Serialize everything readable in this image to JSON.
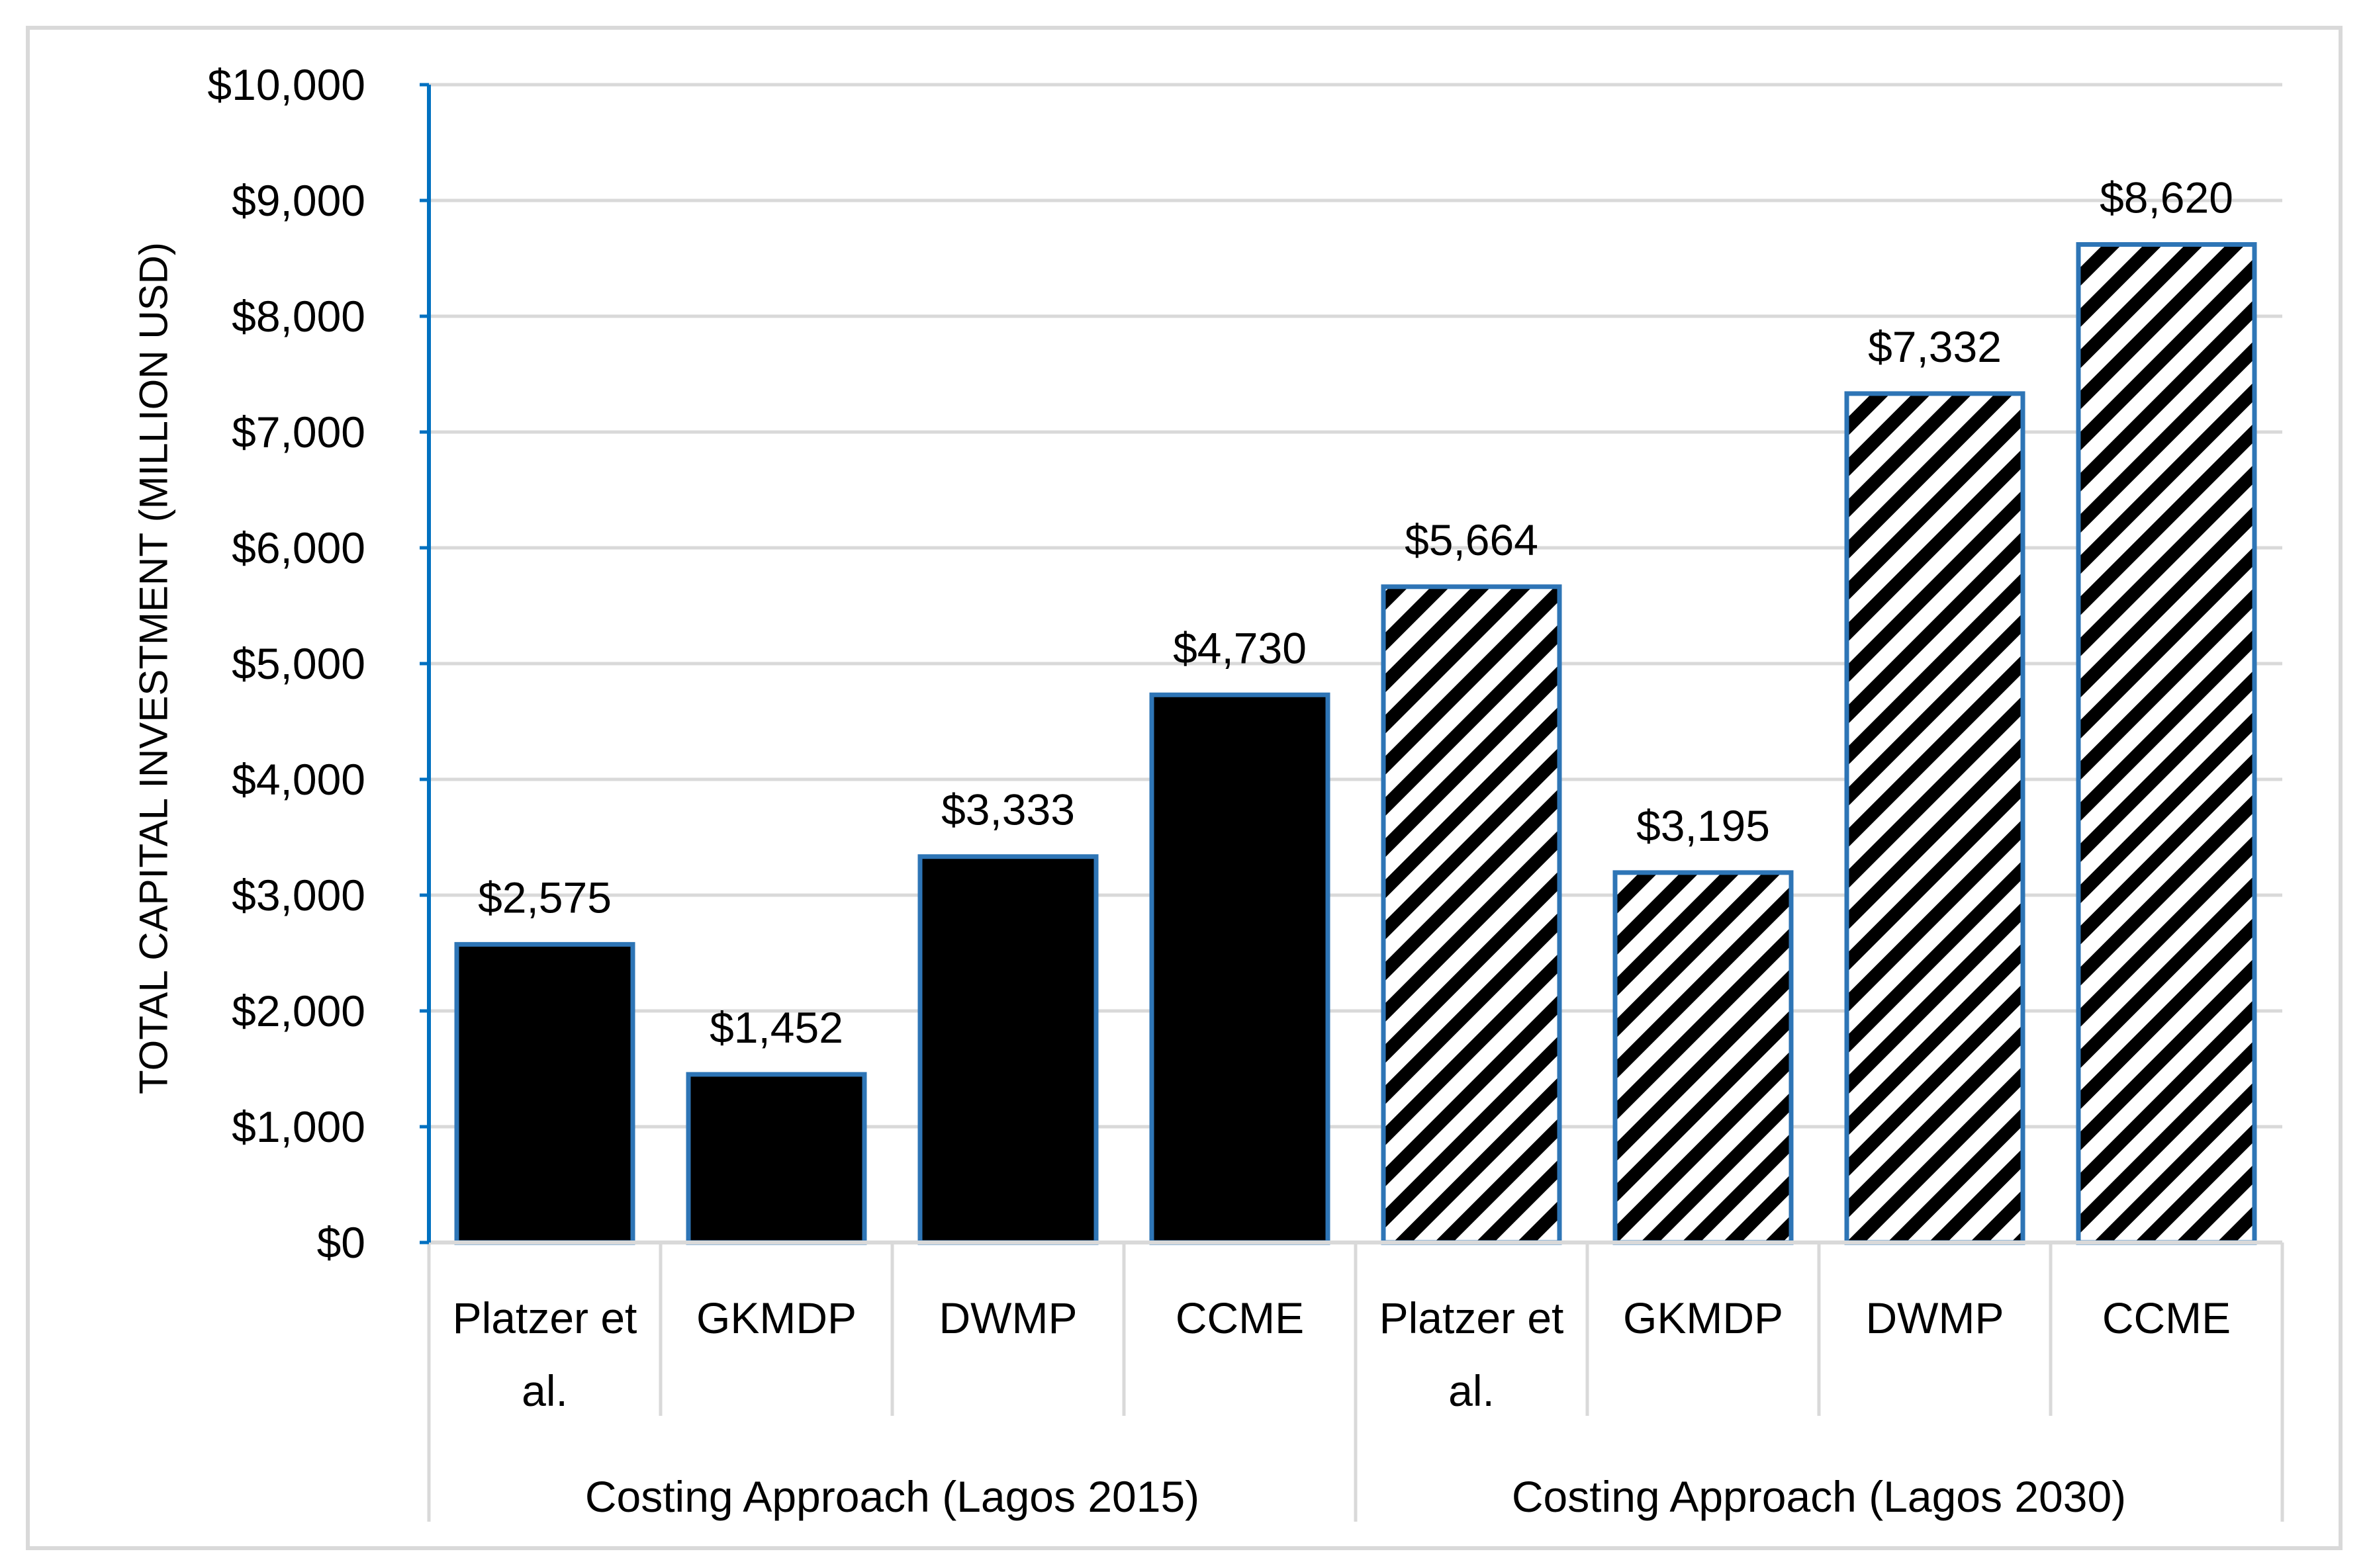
{
  "chart_data": {
    "type": "bar",
    "title": "",
    "xlabel": "",
    "ylabel": "TOTAL CAPITAL INVESTMENT (MILLION USD)",
    "ylim": [
      0,
      10000
    ],
    "ytick_step": 1000,
    "yticks": [
      "$0",
      "$1,000",
      "$2,000",
      "$3,000",
      "$4,000",
      "$5,000",
      "$6,000",
      "$7,000",
      "$8,000",
      "$9,000",
      "$10,000"
    ],
    "grid": true,
    "legend": "none",
    "groups": [
      {
        "name": "Costing Approach (Lagos 2015)",
        "fill": "solid",
        "bars": [
          {
            "category": [
              "Platzer et",
              "al."
            ],
            "value": 2575,
            "label": "$2,575"
          },
          {
            "category": [
              "GKMDP"
            ],
            "value": 1452,
            "label": "$1,452"
          },
          {
            "category": [
              "DWMP"
            ],
            "value": 3333,
            "label": "$3,333"
          },
          {
            "category": [
              "CCME"
            ],
            "value": 4730,
            "label": "$4,730"
          }
        ]
      },
      {
        "name": "Costing Approach (Lagos 2030)",
        "fill": "hatched",
        "bars": [
          {
            "category": [
              "Platzer et",
              "al."
            ],
            "value": 5664,
            "label": "$5,664"
          },
          {
            "category": [
              "GKMDP"
            ],
            "value": 3195,
            "label": "$3,195"
          },
          {
            "category": [
              "DWMP"
            ],
            "value": 7332,
            "label": "$7,332"
          },
          {
            "category": [
              "CCME"
            ],
            "value": 8620,
            "label": "$8,620"
          }
        ]
      }
    ],
    "colors": {
      "bar_fill": "#000000",
      "bar_edge": "#2E75B6",
      "axis_line": "#0070C0",
      "grid": "#D9D9D9",
      "frame": "#D9D9D9",
      "hatch_bg": "#ffffff",
      "hatch_fg": "#000000"
    }
  }
}
